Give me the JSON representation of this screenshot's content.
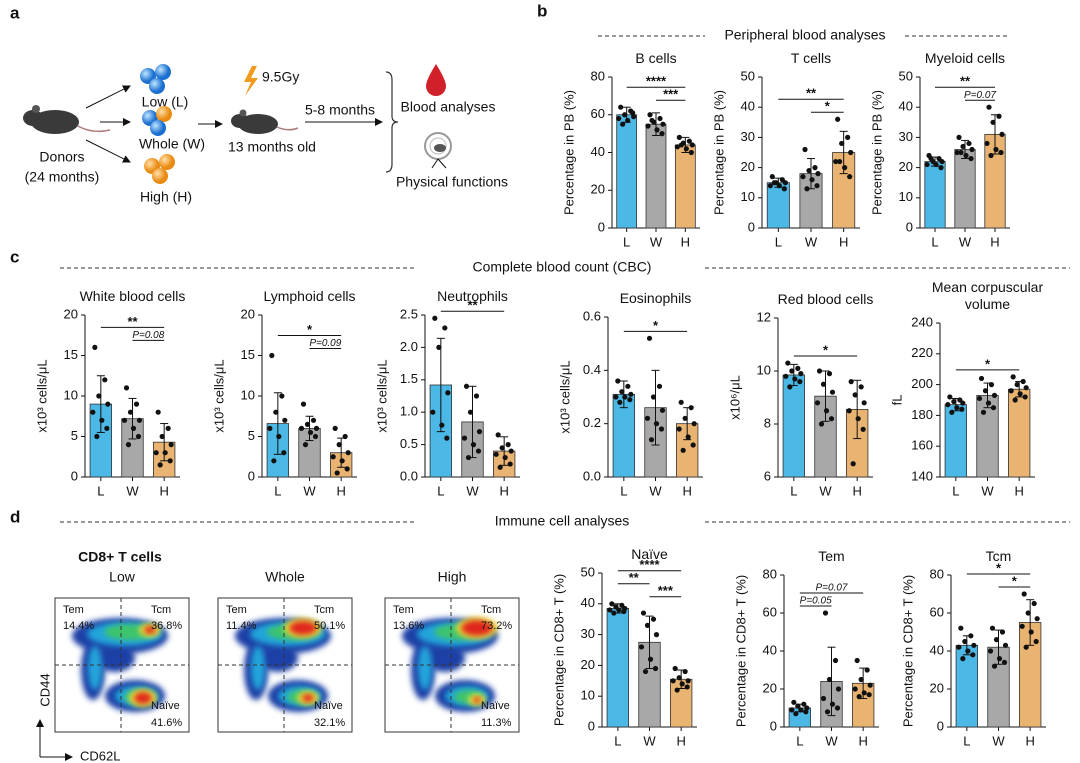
{
  "panel_labels": [
    "a",
    "b",
    "c",
    "d"
  ],
  "headings": [
    "Peripheral blood analyses",
    "Complete blood count (CBC)",
    "Immune cell analyses"
  ],
  "schematic": {
    "donor": [
      "Donors",
      "(24 months)"
    ],
    "groups": [
      "Low (L)",
      "Whole (W)",
      "High (H)"
    ],
    "dose": "9.5Gy",
    "recipient": "13 months old",
    "duration": "5-8 months",
    "readouts": [
      "Blood analyses",
      "Physical functions"
    ]
  },
  "flow": {
    "title": "CD8+ T cells",
    "x_axis": "CD62L",
    "y_axis": "CD44",
    "gates": [
      "Tem",
      "Tcm",
      "Naïve"
    ],
    "plots": [
      {
        "name": "Low",
        "tem": "14.4%",
        "tcm": "36.8%",
        "naive": "41.6%"
      },
      {
        "name": "Whole",
        "tem": "11.4%",
        "tcm": "50.1%",
        "naive": "32.1%"
      },
      {
        "name": "High",
        "tem": "13.6%",
        "tcm": "73.2%",
        "naive": "11.3%"
      }
    ]
  },
  "chart_data": [
    {
      "type": "bar",
      "title": "B cells",
      "ylabel": "Percentage in PB (%)",
      "categories": [
        "L",
        "W",
        "H"
      ],
      "colors": [
        "#4cb8e6",
        "#a8a8a8",
        "#e9b472"
      ],
      "values": [
        60,
        55,
        44
      ],
      "errors": [
        4,
        6,
        4
      ],
      "points": [
        [
          64,
          62,
          60,
          59,
          58,
          57,
          61,
          55
        ],
        [
          60,
          58,
          56,
          55,
          54,
          52,
          50,
          57
        ],
        [
          48,
          46,
          45,
          44,
          43,
          42,
          40,
          44
        ]
      ],
      "ylim": [
        0,
        80
      ],
      "yticks": [
        0,
        20,
        40,
        60,
        80
      ],
      "significance": [
        {
          "pair": [
            "W",
            "H"
          ],
          "label": "***"
        },
        {
          "pair": [
            "L",
            "H"
          ],
          "label": "****"
        }
      ]
    },
    {
      "type": "bar",
      "title": "T cells",
      "ylabel": "Percentage in PB (%)",
      "categories": [
        "L",
        "W",
        "H"
      ],
      "colors": [
        "#4cb8e6",
        "#a8a8a8",
        "#e9b472"
      ],
      "values": [
        15,
        18,
        25
      ],
      "errors": [
        1.5,
        5,
        7
      ],
      "points": [
        [
          17,
          16,
          15,
          15,
          14,
          14,
          13,
          15
        ],
        [
          26,
          20,
          19,
          18,
          17,
          16,
          14,
          13
        ],
        [
          36,
          30,
          28,
          25,
          22,
          20,
          17,
          22
        ]
      ],
      "ylim": [
        0,
        50
      ],
      "yticks": [
        0,
        10,
        20,
        30,
        40,
        50
      ],
      "significance": [
        {
          "pair": [
            "W",
            "H"
          ],
          "label": "*"
        },
        {
          "pair": [
            "L",
            "H"
          ],
          "label": "**"
        }
      ]
    },
    {
      "type": "bar",
      "title": "Myeloid cells",
      "ylabel": "Percentage in PB (%)",
      "categories": [
        "L",
        "W",
        "H"
      ],
      "colors": [
        "#4cb8e6",
        "#a8a8a8",
        "#e9b472"
      ],
      "values": [
        22,
        26,
        31
      ],
      "errors": [
        1.5,
        3,
        6.5
      ],
      "points": [
        [
          24,
          23,
          22,
          22,
          21,
          21,
          20,
          23
        ],
        [
          30,
          28,
          27,
          26,
          25,
          24,
          23,
          25
        ],
        [
          40,
          37,
          35,
          31,
          28,
          26,
          25,
          24
        ]
      ],
      "ylim": [
        0,
        50
      ],
      "yticks": [
        0,
        10,
        20,
        30,
        40,
        50
      ],
      "significance": [
        {
          "pair": [
            "W",
            "H"
          ],
          "label": "P=0.07"
        },
        {
          "pair": [
            "L",
            "H"
          ],
          "label": "**"
        }
      ]
    },
    {
      "type": "bar",
      "title": "White blood cells",
      "ylabel": "x10³ cells/μL",
      "categories": [
        "L",
        "W",
        "H"
      ],
      "colors": [
        "#4cb8e6",
        "#a8a8a8",
        "#e9b472"
      ],
      "values": [
        9,
        7.2,
        4.3
      ],
      "errors": [
        3.5,
        2.5,
        2.3
      ],
      "points": [
        [
          16,
          12,
          10,
          9,
          8,
          7,
          6,
          5
        ],
        [
          11,
          9,
          8,
          7,
          7,
          6,
          5,
          4
        ],
        [
          8,
          6,
          5,
          4,
          3,
          3,
          2,
          1.5
        ]
      ],
      "ylim": [
        0,
        20
      ],
      "yticks": [
        0,
        5,
        10,
        15,
        20
      ],
      "significance": [
        {
          "pair": [
            "W",
            "H"
          ],
          "label": "P=0.08"
        },
        {
          "pair": [
            "L",
            "H"
          ],
          "label": "**"
        }
      ]
    },
    {
      "type": "bar",
      "title": "Lymphoid cells",
      "ylabel": "x10³ cells/μL",
      "categories": [
        "L",
        "W",
        "H"
      ],
      "colors": [
        "#4cb8e6",
        "#a8a8a8",
        "#e9b472"
      ],
      "values": [
        6.6,
        6,
        3
      ],
      "errors": [
        3.8,
        1.5,
        1.8
      ],
      "points": [
        [
          15,
          10,
          8,
          7,
          6,
          5,
          3,
          2
        ],
        [
          9,
          7,
          6.5,
          6,
          6,
          5.5,
          5,
          4
        ],
        [
          6,
          5,
          4,
          3,
          2.5,
          2,
          1,
          0.5
        ]
      ],
      "ylim": [
        0,
        20
      ],
      "yticks": [
        0,
        5,
        10,
        15,
        20
      ],
      "significance": [
        {
          "pair": [
            "W",
            "H"
          ],
          "label": "P=0.09"
        },
        {
          "pair": [
            "L",
            "H"
          ],
          "label": "*"
        }
      ]
    },
    {
      "type": "bar",
      "title": "Neutrophils",
      "ylabel": "x10³ cells/μL",
      "categories": [
        "L",
        "W",
        "H"
      ],
      "colors": [
        "#4cb8e6",
        "#a8a8a8",
        "#e9b472"
      ],
      "values": [
        1.42,
        0.85,
        0.4
      ],
      "errors": [
        0.72,
        0.55,
        0.22
      ],
      "points": [
        [
          2.45,
          2.3,
          2.0,
          1.3,
          1.0,
          0.8,
          0.6
        ],
        [
          1.4,
          1.25,
          1.0,
          0.7,
          0.6,
          0.5,
          0.4,
          0.3
        ],
        [
          0.65,
          0.5,
          0.45,
          0.4,
          0.35,
          0.3,
          0.2,
          0.15
        ]
      ],
      "ylim": [
        0,
        2.5
      ],
      "yticks": [
        {
          "value": 0,
          "label": "0.0"
        },
        0.5,
        {
          "value": 1,
          "label": "1.0"
        },
        1.5,
        {
          "value": 2,
          "label": "2.0"
        },
        2.5
      ],
      "significance": [
        {
          "pair": [
            "L",
            "H"
          ],
          "label": "**"
        }
      ]
    },
    {
      "type": "bar",
      "title": "Eosinophils",
      "ylabel": "x10³ cells/μL",
      "categories": [
        "L",
        "W",
        "H"
      ],
      "colors": [
        "#4cb8e6",
        "#a8a8a8",
        "#e9b472"
      ],
      "values": [
        0.31,
        0.26,
        0.2
      ],
      "errors": [
        0.05,
        0.14,
        0.06
      ],
      "points": [
        [
          0.36,
          0.34,
          0.32,
          0.31,
          0.3,
          0.3,
          0.29,
          0.28
        ],
        [
          0.52,
          0.34,
          0.3,
          0.25,
          0.22,
          0.2,
          0.18,
          0.14
        ],
        [
          0.28,
          0.26,
          0.22,
          0.2,
          0.18,
          0.15,
          0.12,
          0.1
        ]
      ],
      "ylim": [
        0,
        0.6
      ],
      "yticks": [
        {
          "value": 0,
          "label": "0.0"
        },
        0.2,
        0.4,
        0.6
      ],
      "significance": [
        {
          "pair": [
            "L",
            "H"
          ],
          "label": "*"
        }
      ]
    },
    {
      "type": "bar",
      "title": "Red blood cells",
      "ylabel": "x10⁶/μL",
      "categories": [
        "L",
        "W",
        "H"
      ],
      "colors": [
        "#4cb8e6",
        "#a8a8a8",
        "#e9b472"
      ],
      "values": [
        9.85,
        9.05,
        8.55
      ],
      "errors": [
        0.4,
        0.95,
        1.1
      ],
      "points": [
        [
          10.3,
          10.1,
          10,
          9.9,
          9.8,
          9.7,
          9.6,
          9.4
        ],
        [
          10,
          9.9,
          9.5,
          9.2,
          8.8,
          8.5,
          8.2,
          8
        ],
        [
          9.6,
          9.4,
          9.1,
          8.8,
          8.5,
          8.2,
          7.8,
          6.5
        ]
      ],
      "ylim": [
        6,
        12
      ],
      "yticks": [
        6,
        8,
        10,
        12
      ],
      "significance": [
        {
          "pair": [
            "L",
            "H"
          ],
          "label": "*"
        }
      ]
    },
    {
      "type": "bar",
      "title": "Mean corpuscular volume",
      "ylabel": "fL",
      "categories": [
        "L",
        "W",
        "H"
      ],
      "colors": [
        "#4cb8e6",
        "#a8a8a8",
        "#e9b472"
      ],
      "values": [
        187,
        193,
        197
      ],
      "errors": [
        4,
        8,
        5
      ],
      "points": [
        [
          192,
          190,
          189,
          188,
          187,
          185,
          184,
          182
        ],
        [
          204,
          200,
          196,
          193,
          191,
          188,
          185,
          182
        ],
        [
          205,
          202,
          200,
          198,
          196,
          194,
          192,
          190
        ]
      ],
      "ylim": [
        140,
        240
      ],
      "yticks": [
        140,
        160,
        180,
        200,
        220,
        240
      ],
      "significance": [
        {
          "pair": [
            "L",
            "H"
          ],
          "label": "*"
        }
      ]
    },
    {
      "type": "bar",
      "title": "Naïve",
      "ylabel": "Percentage in CD8+ T (%)",
      "categories": [
        "L",
        "W",
        "H"
      ],
      "colors": [
        "#4cb8e6",
        "#a8a8a8",
        "#e9b472"
      ],
      "values": [
        38.5,
        27.5,
        15.5
      ],
      "errors": [
        1.5,
        8.5,
        3
      ],
      "points": [
        [
          40,
          39.5,
          39,
          38.5,
          38,
          38,
          37.5,
          37
        ],
        [
          37,
          35,
          33,
          30,
          26,
          22,
          19,
          18
        ],
        [
          19,
          18,
          16,
          15,
          15,
          14,
          13,
          12
        ]
      ],
      "ylim": [
        0,
        50
      ],
      "yticks": [
        0,
        10,
        20,
        30,
        40,
        50
      ],
      "significance": [
        {
          "pair": [
            "W",
            "H"
          ],
          "label": "***"
        },
        {
          "pair": [
            "L",
            "W"
          ],
          "label": "**"
        },
        {
          "pair": [
            "L",
            "H"
          ],
          "label": "****"
        }
      ]
    },
    {
      "type": "bar",
      "title": "Tem",
      "ylabel": "Percentage in CD8+ T (%)",
      "categories": [
        "L",
        "W",
        "H"
      ],
      "colors": [
        "#4cb8e6",
        "#a8a8a8",
        "#e9b472"
      ],
      "values": [
        10,
        24,
        23
      ],
      "errors": [
        2,
        18,
        8
      ],
      "points": [
        [
          13,
          12,
          11,
          10,
          9,
          9,
          8,
          7
        ],
        [
          60,
          35,
          25,
          20,
          15,
          12,
          10,
          8
        ],
        [
          35,
          30,
          25,
          22,
          20,
          18,
          17,
          16
        ]
      ],
      "ylim": [
        0,
        80
      ],
      "yticks": [
        0,
        20,
        40,
        60,
        80
      ],
      "significance": [
        {
          "pair": [
            "L",
            "W"
          ],
          "label": "P=0.05"
        },
        {
          "pair": [
            "L",
            "H"
          ],
          "label": "P=0.07"
        }
      ]
    },
    {
      "type": "bar",
      "title": "Tcm",
      "ylabel": "Percentage in CD8+ T (%)",
      "categories": [
        "L",
        "W",
        "H"
      ],
      "colors": [
        "#4cb8e6",
        "#a8a8a8",
        "#e9b472"
      ],
      "values": [
        43,
        42,
        55
      ],
      "errors": [
        5,
        9,
        12
      ],
      "points": [
        [
          52,
          48,
          45,
          43,
          42,
          40,
          38,
          36
        ],
        [
          52,
          50,
          46,
          43,
          40,
          36,
          34,
          32
        ],
        [
          70,
          65,
          60,
          57,
          53,
          50,
          45,
          42
        ]
      ],
      "ylim": [
        0,
        80
      ],
      "yticks": [
        0,
        20,
        40,
        60,
        80
      ],
      "significance": [
        {
          "pair": [
            "W",
            "H"
          ],
          "label": "*"
        },
        {
          "pair": [
            "L",
            "H"
          ],
          "label": "*"
        }
      ]
    }
  ]
}
